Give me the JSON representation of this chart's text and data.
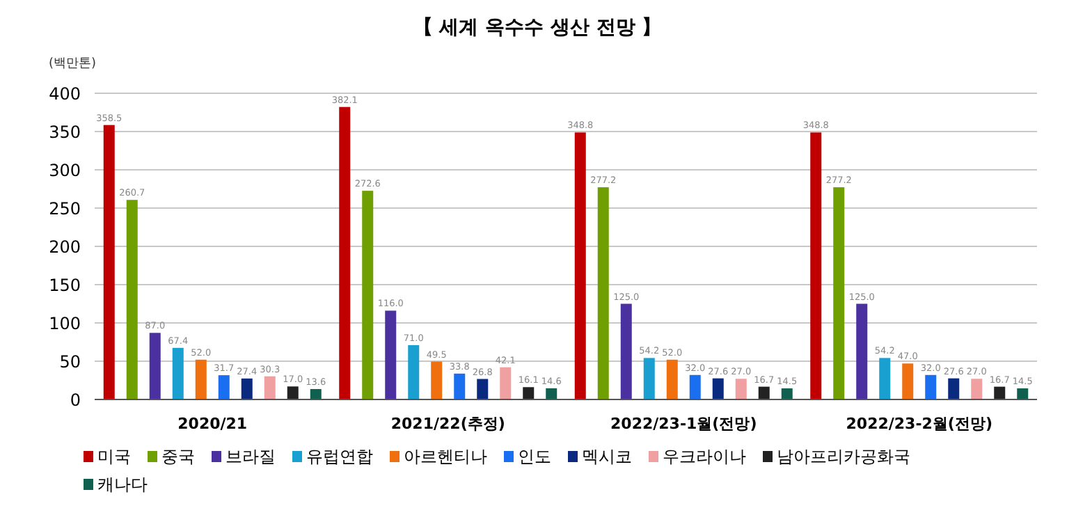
{
  "chart_data": {
    "type": "bar",
    "title": "【 세계 옥수수 생산 전망 】",
    "ylabel": "(백만톤)",
    "categories": [
      "2020/21",
      "2021/22(추정)",
      "2022/23-1월(전망)",
      "2022/23-2월(전망)"
    ],
    "series": [
      {
        "name": "미국",
        "color": "#c00000",
        "values": [
          358.5,
          382.1,
          348.8,
          348.8
        ],
        "value_labels": [
          "358.5",
          "382.1",
          "348.8",
          "348.8"
        ]
      },
      {
        "name": "중국",
        "color": "#6f9f00",
        "values": [
          260.7,
          272.6,
          277.2,
          277.2
        ],
        "value_labels": [
          "260.7",
          "272.6",
          "277.2",
          "277.2"
        ]
      },
      {
        "name": "브라질",
        "color": "#4b30a0",
        "values": [
          87.0,
          116.0,
          125.0,
          125.0
        ],
        "value_labels": [
          "87.0",
          "116.0",
          "125.0",
          "125.0"
        ]
      },
      {
        "name": "유럽연합",
        "color": "#1aa0d0",
        "values": [
          67.4,
          71.0,
          54.2,
          54.2
        ],
        "value_labels": [
          "67.4",
          "71.0",
          "54.2",
          "54.2"
        ]
      },
      {
        "name": "아르헨티나",
        "color": "#f07010",
        "values": [
          52.0,
          49.5,
          52.0,
          47.0
        ],
        "value_labels": [
          "52.0",
          "49.5",
          "52.0",
          "47.0"
        ]
      },
      {
        "name": "인도",
        "color": "#1a6ff0",
        "values": [
          31.7,
          33.8,
          32.0,
          32.0
        ],
        "value_labels": [
          "31.7",
          "33.8",
          "32.0",
          "32.0"
        ]
      },
      {
        "name": "멕시코",
        "color": "#0a2a80",
        "values": [
          27.4,
          26.8,
          27.6,
          27.6
        ],
        "value_labels": [
          "27.4",
          "26.8",
          "27.6",
          "27.6"
        ]
      },
      {
        "name": "우크라이나",
        "color": "#f0a0a0",
        "values": [
          30.3,
          42.1,
          27.0,
          27.0
        ],
        "value_labels": [
          "30.3",
          "42.1",
          "27.0",
          "27.0"
        ]
      },
      {
        "name": "남아프리카공화국",
        "color": "#222222",
        "values": [
          17.0,
          16.1,
          16.7,
          16.7
        ],
        "value_labels": [
          "17.0",
          "16.1",
          "16.7",
          "16.7"
        ]
      },
      {
        "name": "캐나다",
        "color": "#106050",
        "values": [
          13.6,
          14.6,
          14.5,
          14.5
        ],
        "value_labels": [
          "13.6",
          "14.6",
          "14.5",
          "14.5"
        ]
      }
    ],
    "ylim": [
      0,
      400
    ],
    "yticks": [
      0,
      50,
      100,
      150,
      200,
      250,
      300,
      350,
      400
    ],
    "grid": "y",
    "legend": "bottom"
  }
}
